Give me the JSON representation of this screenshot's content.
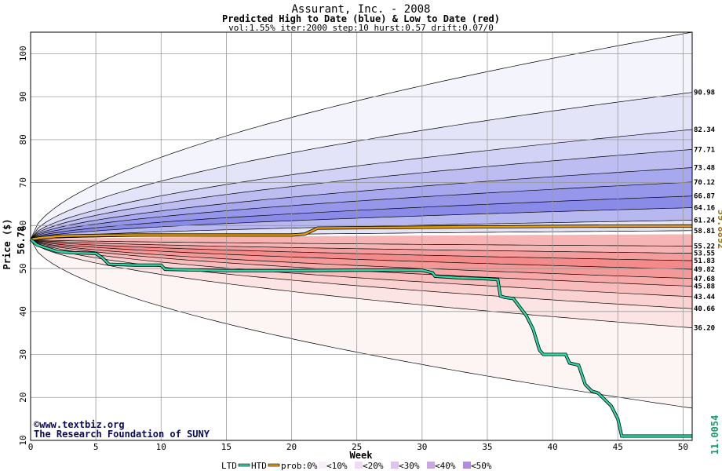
{
  "chart_data": {
    "type": "area",
    "title": "Assurant, Inc. - 2008",
    "subtitle": "Predicted High to Date (blue) &  Low to Date (red)",
    "params": "vol:1.55% iter:2000 step:10 hurst:0.57 drift:0.07/0",
    "xlabel": "Week",
    "ylabel": "Price ($)",
    "xlim": [
      0,
      50.7
    ],
    "ylim": [
      10,
      105
    ],
    "x_ticks": [
      0,
      5,
      10,
      15,
      20,
      25,
      30,
      35,
      40,
      45,
      50
    ],
    "y_ticks": [
      10,
      20,
      30,
      40,
      50,
      60,
      70,
      80,
      90,
      100
    ],
    "grid": true,
    "start_value": 56.78,
    "start_label": "56.78",
    "high_series_end_value": 59.8892,
    "high_series_end_label": "59.8892",
    "low_series_end_value": 11.0054,
    "low_series_end_label": "11.0054",
    "band_end_values": [
      90.98,
      82.34,
      77.71,
      73.48,
      70.12,
      66.87,
      64.16,
      61.24,
      58.81,
      55.22,
      53.55,
      51.83,
      49.82,
      47.68,
      45.88,
      43.44,
      40.66,
      36.2
    ],
    "band_end_labels": [
      "90.98",
      "82.34",
      "77.71",
      "73.48",
      "70.12",
      "66.87",
      "64.16",
      "61.24",
      "58.81",
      "55.22",
      "53.55",
      "51.83",
      "49.82",
      "47.68",
      "45.88",
      "43.44",
      "40.66",
      "36.20"
    ],
    "extreme_high_end": 105,
    "extreme_low_end": 17.5,
    "htd_series": {
      "name": "HTD",
      "color": "#e8a000",
      "x": [
        0,
        0.5,
        1,
        1.5,
        2,
        3,
        5,
        8,
        10,
        15,
        20,
        21,
        21.5,
        22,
        25,
        30,
        35,
        40,
        45,
        50.7
      ],
      "y": [
        56.78,
        57.0,
        57.2,
        57.3,
        57.5,
        57.6,
        57.7,
        57.8,
        57.8,
        57.8,
        57.8,
        58.0,
        58.7,
        59.4,
        59.5,
        59.6,
        59.7,
        59.8,
        59.85,
        59.89
      ]
    },
    "ltd_series": {
      "name": "LTD",
      "color": "#2ed9a8",
      "x": [
        0,
        0.5,
        1,
        1.5,
        2,
        3,
        5,
        5.5,
        6,
        8,
        10,
        10.3,
        15,
        20,
        25,
        30,
        30.8,
        31,
        33,
        35,
        35.8,
        36,
        36.3,
        37,
        38,
        38.5,
        39,
        39.3,
        41,
        41.3,
        42,
        42.5,
        43,
        43.5,
        44.5,
        45,
        45.3,
        50.7
      ],
      "y": [
        56.78,
        55.5,
        55.0,
        54.5,
        54.0,
        53.7,
        53.5,
        52.5,
        51.0,
        50.8,
        50.8,
        49.8,
        49.5,
        49.5,
        49.6,
        49.6,
        49.0,
        48.2,
        47.8,
        47.6,
        47.4,
        43.6,
        43.3,
        43.0,
        39.0,
        36.0,
        31.0,
        30.0,
        30.0,
        28.0,
        27.5,
        23.0,
        21.5,
        21.0,
        18.0,
        15.0,
        11.0,
        11.0
      ]
    },
    "band_fill_colors": {
      "blue": [
        "#f4f4fd",
        "#e4e4f9",
        "#d2d2f6",
        "#bdbdf2",
        "#a8a8ee",
        "#9696ea",
        "#8a8ae8",
        "#b8b8f0",
        "#e4e4f9"
      ],
      "red": [
        "#fdf4f4",
        "#fde4e4",
        "#fbd2d2",
        "#f9bcbc",
        "#f7a8a8",
        "#f59898",
        "#f58a8a",
        "#f59c9c",
        "#f7b4b4"
      ]
    }
  },
  "credits": {
    "url": "www.textbiz.org",
    "org": "The Research Foundation of SUNY"
  },
  "legend": {
    "ltd": "LTD",
    "htd": "HTD",
    "prob": "prob:0%",
    "items": [
      "<10%",
      "<20%",
      "<30%",
      "<40%",
      "<50%"
    ],
    "swatch_colors": [
      "#f8f0f8",
      "#eedcf2",
      "#dcc4ec",
      "#c8a8e4",
      "#b08cdc"
    ]
  }
}
